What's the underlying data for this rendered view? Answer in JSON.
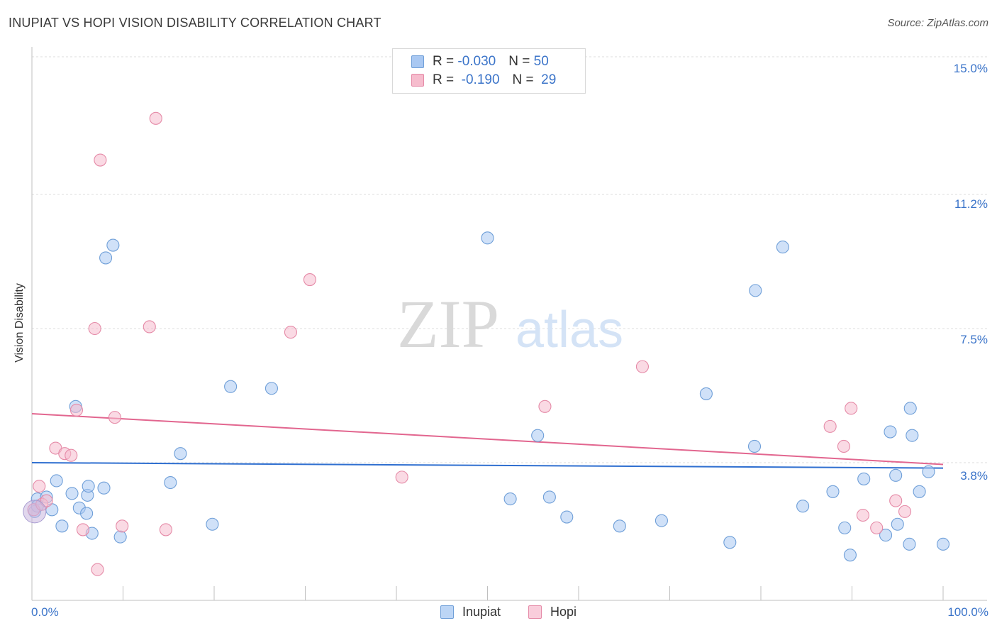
{
  "header": {
    "title": "INUPIAT VS HOPI VISION DISABILITY CORRELATION CHART",
    "source": "Source: ZipAtlas.com"
  },
  "watermark": {
    "zip": "ZIP",
    "atlas": "atlas"
  },
  "legend": {
    "rows": [
      {
        "r_label": "R = ",
        "r_value": "-0.030",
        "n_label": "N = ",
        "n_value": "50",
        "color": "#a9c8f2",
        "border": "#6f9fd8"
      },
      {
        "r_label": "R = ",
        "r_value": " -0.190",
        "n_label": "N = ",
        "n_value": " 29",
        "color": "#f6bccd",
        "border": "#e58aa7"
      }
    ]
  },
  "bottom_legend": {
    "items": [
      {
        "label": "Inupiat",
        "color": "#bcd5f5",
        "border": "#6f9fd8"
      },
      {
        "label": "Hopi",
        "color": "#f9cddb",
        "border": "#e58aa7"
      }
    ]
  },
  "chart_data": {
    "type": "scatter",
    "xlabel": "",
    "ylabel": "Vision Disability",
    "xlim": [
      0,
      100
    ],
    "ylim": [
      0,
      15
    ],
    "x_tick_labels": [
      "0.0%",
      "100.0%"
    ],
    "y_ticks": [
      3.8,
      7.5,
      11.2,
      15.0
    ],
    "y_tick_labels": [
      "3.8%",
      "7.5%",
      "11.2%",
      "15.0%"
    ],
    "grid": "horizontal dashed",
    "legend_position": "top-center",
    "series": [
      {
        "name": "Inupiat",
        "color": "#a9c8f2",
        "stroke": "#6f9fd8",
        "line_color": "#2f6fd0",
        "trend": {
          "x": [
            0,
            100
          ],
          "y": [
            3.8,
            3.65
          ]
        },
        "points": [
          [
            0.3,
            2.45
          ],
          [
            0.6,
            2.8
          ],
          [
            1.6,
            2.85
          ],
          [
            2.2,
            2.5
          ],
          [
            2.7,
            3.3
          ],
          [
            3.3,
            2.05
          ],
          [
            4.4,
            2.95
          ],
          [
            4.8,
            5.35
          ],
          [
            5.2,
            2.55
          ],
          [
            6.0,
            2.4
          ],
          [
            6.1,
            2.9
          ],
          [
            6.2,
            3.15
          ],
          [
            6.6,
            1.85
          ],
          [
            7.9,
            3.1
          ],
          [
            8.1,
            9.45
          ],
          [
            8.9,
            9.8
          ],
          [
            9.7,
            1.75
          ],
          [
            15.2,
            3.25
          ],
          [
            16.3,
            4.05
          ],
          [
            19.8,
            2.1
          ],
          [
            21.8,
            5.9
          ],
          [
            26.3,
            5.85
          ],
          [
            50.0,
            10.0
          ],
          [
            52.5,
            2.8
          ],
          [
            55.5,
            4.55
          ],
          [
            56.8,
            2.85
          ],
          [
            58.7,
            2.3
          ],
          [
            64.5,
            2.05
          ],
          [
            69.1,
            2.2
          ],
          [
            74.0,
            5.7
          ],
          [
            76.6,
            1.6
          ],
          [
            79.3,
            4.25
          ],
          [
            79.4,
            8.55
          ],
          [
            82.4,
            9.75
          ],
          [
            84.6,
            2.6
          ],
          [
            87.9,
            3.0
          ],
          [
            89.2,
            2.0
          ],
          [
            89.8,
            1.25
          ],
          [
            91.3,
            3.35
          ],
          [
            93.7,
            1.8
          ],
          [
            94.2,
            4.65
          ],
          [
            94.8,
            3.45
          ],
          [
            95.0,
            2.1
          ],
          [
            96.3,
            1.55
          ],
          [
            96.4,
            5.3
          ],
          [
            96.6,
            4.55
          ],
          [
            97.4,
            3.0
          ],
          [
            98.4,
            3.55
          ],
          [
            100.0,
            1.55
          ],
          [
            0.6,
            2.6
          ]
        ]
      },
      {
        "name": "Hopi",
        "color": "#f6bccd",
        "stroke": "#e58aa7",
        "line_color": "#e2668f",
        "trend": {
          "x": [
            0,
            100
          ],
          "y": [
            5.15,
            3.75
          ]
        },
        "points": [
          [
            0.2,
            2.5
          ],
          [
            0.8,
            3.15
          ],
          [
            1.1,
            2.65
          ],
          [
            1.6,
            2.75
          ],
          [
            2.6,
            4.2
          ],
          [
            3.6,
            4.05
          ],
          [
            4.3,
            4.0
          ],
          [
            4.9,
            5.25
          ],
          [
            5.6,
            1.95
          ],
          [
            6.9,
            7.5
          ],
          [
            7.2,
            0.85
          ],
          [
            7.5,
            12.15
          ],
          [
            9.1,
            5.05
          ],
          [
            9.9,
            2.05
          ],
          [
            12.9,
            7.55
          ],
          [
            13.6,
            13.3
          ],
          [
            14.7,
            1.95
          ],
          [
            28.4,
            7.4
          ],
          [
            30.5,
            8.85
          ],
          [
            40.6,
            3.4
          ],
          [
            56.3,
            5.35
          ],
          [
            67.0,
            6.45
          ],
          [
            87.6,
            4.8
          ],
          [
            89.1,
            4.25
          ],
          [
            89.9,
            5.3
          ],
          [
            91.2,
            2.35
          ],
          [
            92.7,
            2.0
          ],
          [
            94.8,
            2.75
          ],
          [
            95.8,
            2.45
          ]
        ]
      }
    ]
  }
}
